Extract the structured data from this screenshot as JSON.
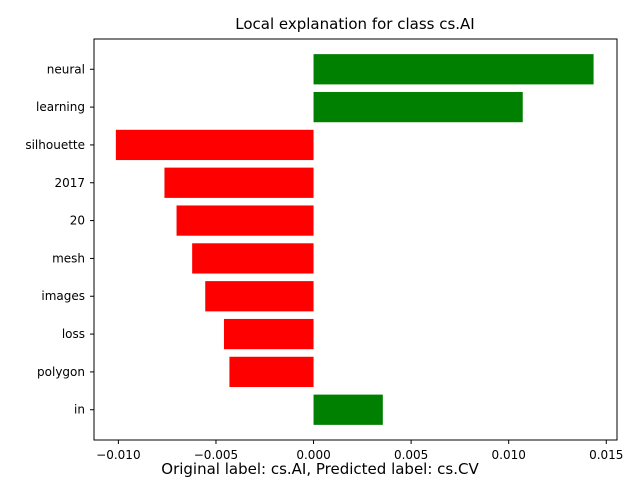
{
  "chart_data": {
    "type": "bar",
    "orientation": "horizontal",
    "title": "Local explanation for class cs.AI",
    "xlabel": "",
    "ylabel": "",
    "categories": [
      "neural",
      "learning",
      "silhouette",
      "2017",
      "20",
      "mesh",
      "images",
      "loss",
      "polygon",
      "in"
    ],
    "values": [
      0.01435,
      0.01072,
      -0.01013,
      -0.00764,
      -0.00702,
      -0.00622,
      -0.00555,
      -0.00459,
      -0.00431,
      0.00355
    ],
    "xlim": [
      -0.01125,
      0.01555
    ],
    "xticks": [
      -0.01,
      -0.005,
      0.0,
      0.005,
      0.01,
      0.015
    ],
    "xtick_labels": [
      "−0.010",
      "−0.005",
      "0.000",
      "0.005",
      "0.010",
      "0.015"
    ],
    "grid": false,
    "legend": "none",
    "colors": {
      "positive": "#008000",
      "negative": "#ff0000"
    },
    "caption": "Original label: cs.AI, Predicted label: cs.CV"
  }
}
